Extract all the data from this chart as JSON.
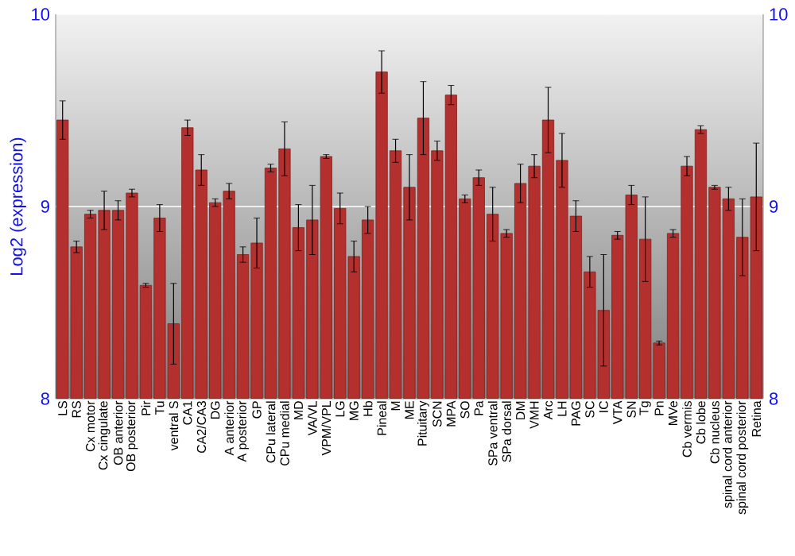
{
  "chart_data": {
    "type": "bar",
    "ylabel": "Log2 (expression)",
    "categories": [
      "LS",
      "RS",
      "Cx motor",
      "Cx cingulate",
      "OB anterior",
      "OB posterior",
      "Pir",
      "Tu",
      "ventral S",
      "CA1",
      "CA2/CA3",
      "DG",
      "A anterior",
      "A posterior",
      "GP",
      "CPu lateral",
      "CPu medial",
      "MD",
      "VA/VL",
      "VPM/VPL",
      "LG",
      "MG",
      "Hb",
      "Pineal",
      "M",
      "ME",
      "Pituitary",
      "SCN",
      "MPA",
      "SO",
      "Pa",
      "SPa ventral",
      "SPa dorsal",
      "DM",
      "VMH",
      "Arc",
      "LH",
      "PAG",
      "SC",
      "IC",
      "VTA",
      "SN",
      "Tg",
      "Pn",
      "MVe",
      "Cb vermis",
      "Cb lobe",
      "Cb nucleus",
      "spinal cord anterior",
      "spinal cord posterior",
      "Retina"
    ],
    "values": [
      9.45,
      8.79,
      8.96,
      8.98,
      8.98,
      9.07,
      8.59,
      8.94,
      8.39,
      9.41,
      9.19,
      9.02,
      9.08,
      8.75,
      8.81,
      9.2,
      9.3,
      8.89,
      8.93,
      9.26,
      8.99,
      8.74,
      8.93,
      9.7,
      9.29,
      9.1,
      9.46,
      9.29,
      9.58,
      9.04,
      9.15,
      8.96,
      8.86,
      9.12,
      9.21,
      9.45,
      9.24,
      8.95,
      8.66,
      8.46,
      8.85,
      9.06,
      8.83,
      8.29,
      8.86,
      9.21,
      9.4,
      9.1,
      9.04,
      8.84,
      9.05
    ],
    "errors": [
      0.1,
      0.03,
      0.02,
      0.1,
      0.05,
      0.02,
      0.01,
      0.07,
      0.21,
      0.04,
      0.08,
      0.02,
      0.04,
      0.04,
      0.13,
      0.02,
      0.14,
      0.12,
      0.18,
      0.01,
      0.08,
      0.08,
      0.07,
      0.11,
      0.06,
      0.17,
      0.19,
      0.05,
      0.05,
      0.02,
      0.04,
      0.14,
      0.02,
      0.1,
      0.06,
      0.17,
      0.14,
      0.08,
      0.08,
      0.29,
      0.02,
      0.05,
      0.22,
      0.01,
      0.02,
      0.05,
      0.02,
      0.01,
      0.06,
      0.2,
      0.28
    ],
    "color": "#b3302e",
    "ylim": [
      8,
      10
    ],
    "yticks": [
      8,
      9,
      10
    ],
    "y2lim": [
      8,
      10
    ],
    "y2ticks": [
      8,
      9,
      10
    ],
    "grid": "y"
  }
}
